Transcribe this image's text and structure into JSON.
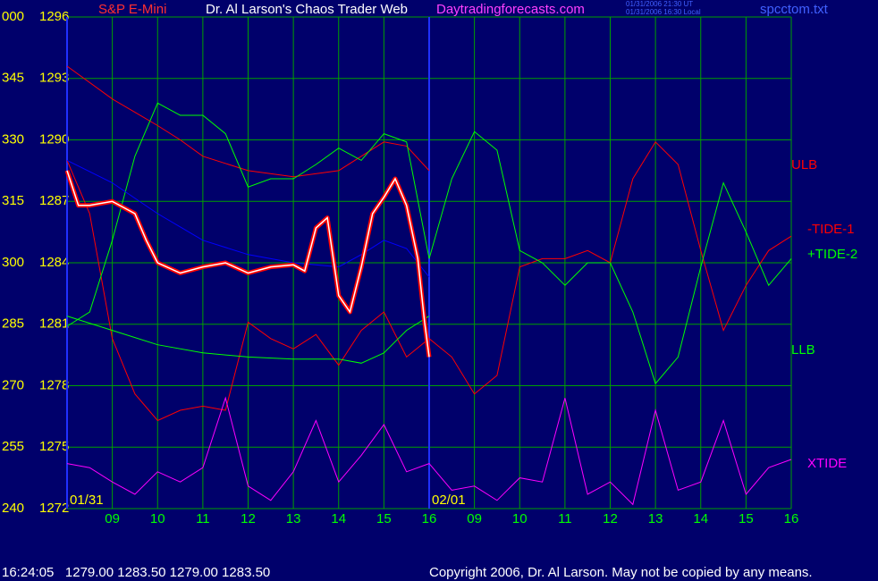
{
  "chart_data": {
    "type": "line",
    "title": "Dr. Al Larson's Chaos Trader Web",
    "instrument": "S&P E-Mini",
    "site": "Daytradingforecasts.com",
    "timestamps": [
      "01/31/2006 21:30 UT",
      "01/31/2006 16:30 Local"
    ],
    "file": "spcctom.txt",
    "status_bar": "16:24:05   1279.00 1283.50 1279.00 1283.50",
    "copyright": "Copyright 2006, Dr. Al Larson. May not be copied by any means.",
    "background": "#00006b",
    "grid": true,
    "grid_color": "#00a000",
    "ylim": [
      1272,
      1296
    ],
    "yticks": [
      1296,
      1293,
      1290,
      1287,
      1284,
      1281,
      1278,
      1275,
      1272
    ],
    "y2lim": [
      240,
      360
    ],
    "y2ticks": [
      {
        "value": 360,
        "label": "000"
      },
      345,
      330,
      315,
      300,
      285,
      270,
      255,
      240
    ],
    "xlim": [
      0,
      16
    ],
    "xticks": [
      {
        "value": 1,
        "label": "09"
      },
      {
        "value": 2,
        "label": "10"
      },
      {
        "value": 3,
        "label": "11"
      },
      {
        "value": 4,
        "label": "12"
      },
      {
        "value": 5,
        "label": "13"
      },
      {
        "value": 6,
        "label": "14"
      },
      {
        "value": 7,
        "label": "15"
      },
      {
        "value": 8,
        "label": "16"
      },
      {
        "value": 9,
        "label": "09"
      },
      {
        "value": 10,
        "label": "10"
      },
      {
        "value": 11,
        "label": "11"
      },
      {
        "value": 12,
        "label": "12"
      },
      {
        "value": 13,
        "label": "13"
      },
      {
        "value": 14,
        "label": "14"
      },
      {
        "value": 15,
        "label": "15"
      },
      {
        "value": 16,
        "label": "16"
      }
    ],
    "date_labels": [
      {
        "x": 0,
        "label": "01/31"
      },
      {
        "x": 8,
        "label": "02/01"
      }
    ],
    "series": [
      {
        "name": "ULB",
        "color": "#ff0000",
        "x": [
          0,
          1,
          2,
          2.5,
          3,
          4,
          5,
          6,
          6.5,
          7,
          7.5,
          8
        ],
        "values": [
          1293.6,
          1292.0,
          1290.7,
          1290.0,
          1289.2,
          1288.5,
          1288.2,
          1288.5,
          1289.2,
          1289.9,
          1289.7,
          1288.5
        ]
      },
      {
        "name": "-TIDE-1",
        "color": "#ff0000",
        "x": [
          0,
          0.5,
          1,
          1.5,
          2,
          2.5,
          3,
          3.5,
          4,
          4.5,
          5,
          5.5,
          6,
          6.5,
          7,
          7.5,
          8,
          8.5,
          9,
          9.5,
          10,
          10.5,
          11,
          11.5,
          12,
          12.5,
          13,
          13.5,
          14,
          14.5,
          15,
          15.5,
          16
        ],
        "values": [
          1289.0,
          1286.4,
          1280.3,
          1277.6,
          1276.3,
          1276.8,
          1277.0,
          1276.8,
          1281.1,
          1280.3,
          1279.8,
          1280.5,
          1279.0,
          1280.7,
          1281.6,
          1279.4,
          1280.3,
          1279.4,
          1277.6,
          1278.5,
          1283.8,
          1284.2,
          1284.2,
          1284.6,
          1284.0,
          1288.1,
          1289.9,
          1288.8,
          1284.6,
          1280.7,
          1282.9,
          1284.6,
          1285.3
        ]
      },
      {
        "name": "+TIDE-2",
        "color": "#00ff00",
        "x": [
          0,
          0.5,
          1,
          1.5,
          2,
          2.5,
          3,
          3.5,
          4,
          4.5,
          5,
          5.5,
          6,
          6.5,
          7,
          7.5,
          8,
          8.5,
          9,
          9.5,
          10,
          10.5,
          11,
          11.5,
          12,
          12.5,
          13,
          13.5,
          14,
          14.5,
          15,
          15.5,
          16
        ],
        "values": [
          1280.9,
          1281.6,
          1285.1,
          1289.2,
          1291.8,
          1291.2,
          1291.2,
          1290.3,
          1287.7,
          1288.1,
          1288.1,
          1288.8,
          1289.6,
          1289.0,
          1290.3,
          1289.9,
          1284.2,
          1288.1,
          1290.4,
          1289.5,
          1284.6,
          1284.0,
          1282.9,
          1284.0,
          1284.0,
          1281.6,
          1278.1,
          1279.4,
          1283.8,
          1287.9,
          1285.5,
          1282.9,
          1284.2
        ]
      },
      {
        "name": "LLB",
        "color": "#00ff00",
        "x": [
          0,
          1,
          2,
          3,
          4,
          5,
          6,
          6.5,
          7,
          7.5,
          8
        ],
        "values": [
          1281.4,
          1280.7,
          1280.0,
          1279.6,
          1279.4,
          1279.3,
          1279.3,
          1279.1,
          1279.6,
          1280.7,
          1281.4
        ]
      },
      {
        "name": "XTIDE",
        "color": "#ff00ff",
        "x": [
          0,
          0.5,
          1,
          1.5,
          2,
          2.5,
          3,
          3.5,
          4,
          4.5,
          5,
          5.5,
          6,
          6.5,
          7,
          7.5,
          8,
          8.5,
          9,
          9.5,
          10,
          10.5,
          11,
          11.5,
          12,
          12.5,
          13,
          13.5,
          14,
          14.5,
          15,
          15.5,
          16
        ],
        "values": [
          1274.2,
          1274.0,
          1273.3,
          1272.7,
          1273.8,
          1273.3,
          1274.0,
          1277.4,
          1273.1,
          1272.4,
          1273.8,
          1276.3,
          1273.3,
          1274.6,
          1276.1,
          1273.8,
          1274.2,
          1272.9,
          1273.1,
          1272.4,
          1273.5,
          1273.3,
          1277.4,
          1272.7,
          1273.3,
          1272.2,
          1276.8,
          1272.9,
          1273.3,
          1276.3,
          1272.7,
          1274.0,
          1274.4
        ]
      }
    ],
    "average": {
      "color": "#0000ff",
      "x": [
        0,
        1,
        2,
        3,
        4,
        5,
        6,
        6.5,
        7,
        7.5,
        8
      ],
      "values": [
        1289.0,
        1287.9,
        1286.4,
        1285.1,
        1284.4,
        1284.0,
        1283.8,
        1284.4,
        1285.1,
        1284.7,
        1283.3
      ]
    },
    "price": {
      "color": "#ffffff",
      "down_color": "#ff0000",
      "x": [
        0,
        0.25,
        0.5,
        1,
        1.5,
        1.75,
        2,
        2.5,
        3,
        3.5,
        4,
        4.5,
        5,
        5.25,
        5.5,
        5.75,
        6,
        6.25,
        6.5,
        6.75,
        7,
        7.25,
        7.5,
        7.75,
        7.9,
        8
      ],
      "values": [
        1288.5,
        1286.8,
        1286.8,
        1287.0,
        1286.4,
        1285.1,
        1284.0,
        1283.5,
        1283.8,
        1284.0,
        1283.5,
        1283.8,
        1283.9,
        1283.6,
        1285.7,
        1286.2,
        1282.4,
        1281.6,
        1283.8,
        1286.4,
        1287.2,
        1288.1,
        1286.8,
        1284.2,
        1281.1,
        1279.4
      ]
    }
  }
}
